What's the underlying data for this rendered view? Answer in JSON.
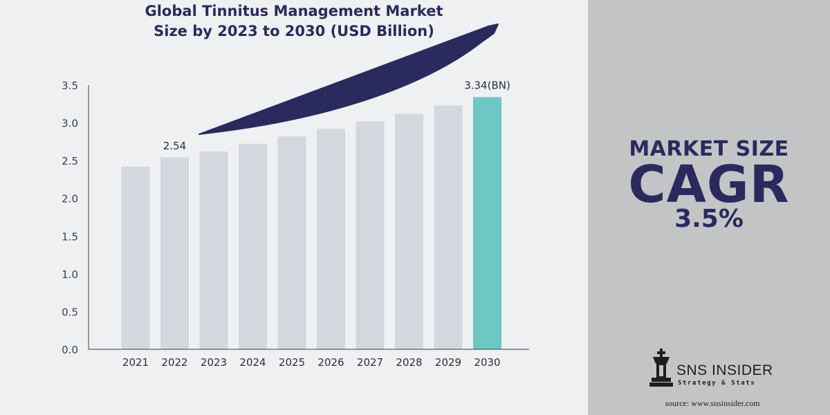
{
  "title_lines": [
    "Global Tinnitus Management Market",
    "Size by 2023 to 2030 (USD Billion)"
  ],
  "chart_data": {
    "type": "bar",
    "title": "Global Tinnitus Management Market Size by 2023 to 2030 (USD Billion)",
    "categories": [
      "2021",
      "2022",
      "2023",
      "2024",
      "2025",
      "2026",
      "2027",
      "2028",
      "2029",
      "2030"
    ],
    "values": [
      2.42,
      2.54,
      2.62,
      2.72,
      2.82,
      2.92,
      3.02,
      3.12,
      3.23,
      3.34
    ],
    "yticks": [
      "0.0",
      "0.5",
      "1.0",
      "1.5",
      "2.0",
      "2.5",
      "3.0",
      "3.5"
    ],
    "ylim": [
      0,
      3.5
    ],
    "data_labels": [
      {
        "category": "2022",
        "text": "2.54"
      },
      {
        "category": "2030",
        "text": "3.34(BN)"
      }
    ],
    "annotation": "CAGR  3.5%",
    "colors": {
      "bar": "#d3d8de",
      "highlight": "#6dc7c3",
      "axis": "#3a3f4a",
      "text": "#2b2a5e"
    }
  },
  "sidebar": {
    "market_size_label": "MARKET SIZE",
    "cagr_label": "CAGR",
    "cagr_value": "3.5%"
  },
  "logo": {
    "name": "SNS INSIDER",
    "tagline": "Strategy & Stats"
  },
  "source": "source: www.snsinsider.com"
}
